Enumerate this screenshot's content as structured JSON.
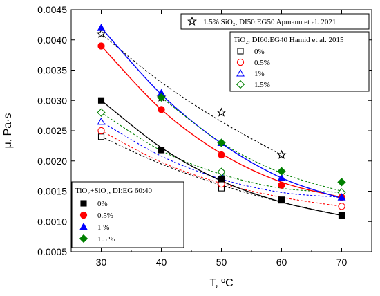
{
  "chart_data": {
    "type": "scatter",
    "xlabel": "T, ºC",
    "ylabel": "μ, Pa·s",
    "xlim": [
      25,
      75
    ],
    "ylim": [
      0.0005,
      0.0045
    ],
    "xticks": [
      "30",
      "40",
      "50",
      "60",
      "70"
    ],
    "yticks": [
      "0.0005",
      "0.0010",
      "0.0015",
      "0.0020",
      "0.0025",
      "0.0030",
      "0.0035",
      "0.0040",
      "0.0045"
    ],
    "grid": false,
    "legends": [
      {
        "title": "1.5% SiO₂, DI50:EG50 Apmann et al. 2021",
        "placement": "top-right",
        "entries": [
          "1.5% SiO₂, DI50:EG50 Apmann et al. 2021"
        ]
      },
      {
        "title": "TiO₂, DI60:EG40 Hamid et al. 2015",
        "placement": "upper-right",
        "entries": [
          "0%",
          "0.5%",
          "1%",
          "1.5%"
        ]
      },
      {
        "title": "TiO₂+SiO₂, DI:EG 60:40",
        "placement": "bottom-left",
        "entries": [
          "0%",
          "0.5%",
          "1 %",
          "1.5 %"
        ]
      }
    ],
    "series": [
      {
        "name": "1.5% SiO₂, DI50:EG50 Apmann et al. 2021",
        "marker": "star",
        "filled": false,
        "color": "#000000",
        "line": "dashed",
        "x": [
          30,
          40,
          50,
          60
        ],
        "values": [
          0.0041,
          0.00305,
          0.0028,
          0.0021
        ]
      },
      {
        "name": "0%",
        "group": "Hamid",
        "marker": "square",
        "filled": false,
        "color": "#000000",
        "line": "dashed",
        "x": [
          30,
          40,
          50,
          60,
          70
        ],
        "values": [
          0.0024,
          0.00218,
          0.00155,
          0.00135,
          0.0011
        ]
      },
      {
        "name": "0.5%",
        "group": "Hamid",
        "marker": "circle",
        "filled": false,
        "color": "#ff0000",
        "line": "dashed",
        "x": [
          30,
          50,
          70
        ],
        "values": [
          0.0025,
          0.00162,
          0.00125
        ]
      },
      {
        "name": "1%",
        "group": "Hamid",
        "marker": "triangle",
        "filled": false,
        "color": "#0000ff",
        "line": "dashed",
        "x": [
          30,
          50
        ],
        "values": [
          0.00265,
          0.00175
        ]
      },
      {
        "name": "1.5%",
        "group": "Hamid",
        "marker": "diamond",
        "filled": false,
        "color": "#008000",
        "line": "dashed",
        "x": [
          30,
          50,
          70
        ],
        "values": [
          0.0028,
          0.00182,
          0.00148
        ]
      },
      {
        "name": "0%",
        "group": "TiO2+SiO2",
        "marker": "square",
        "filled": true,
        "color": "#000000",
        "line": "solid",
        "x": [
          30,
          40,
          50,
          60,
          70
        ],
        "values": [
          0.003,
          0.00218,
          0.0017,
          0.00136,
          0.0011
        ]
      },
      {
        "name": "0.5%",
        "group": "TiO2+SiO2",
        "marker": "circle",
        "filled": true,
        "color": "#ff0000",
        "line": "solid",
        "x": [
          30,
          40,
          50,
          60,
          70
        ],
        "values": [
          0.0039,
          0.00285,
          0.0021,
          0.0016,
          0.0014
        ]
      },
      {
        "name": "1 %",
        "group": "TiO2+SiO2",
        "marker": "triangle",
        "filled": true,
        "color": "#0000ff",
        "line": "solid",
        "x": [
          30,
          40,
          50,
          60,
          70
        ],
        "values": [
          0.0042,
          0.00312,
          0.0023,
          0.00172,
          0.0014
        ]
      },
      {
        "name": "1.5 %",
        "group": "TiO2+SiO2",
        "marker": "diamond",
        "filled": true,
        "color": "#008000",
        "line": "solid",
        "x": [
          40,
          50,
          60,
          70
        ],
        "values": [
          0.00305,
          0.0023,
          0.00183,
          0.00165
        ]
      }
    ],
    "fit_curves": [
      {
        "color": "#000000",
        "style": "dashed",
        "x": [
          30,
          40,
          50,
          60
        ],
        "values": [
          0.0041,
          0.0033,
          0.00265,
          0.0021
        ]
      },
      {
        "color": "#000000",
        "style": "dashed",
        "x": [
          30,
          40,
          50,
          60,
          70
        ],
        "values": [
          0.0024,
          0.00195,
          0.0016,
          0.00132,
          0.0011
        ]
      },
      {
        "color": "#ff0000",
        "style": "dashed",
        "x": [
          30,
          40,
          50,
          60,
          70
        ],
        "values": [
          0.0025,
          0.00198,
          0.00163,
          0.0014,
          0.00125
        ]
      },
      {
        "color": "#0000ff",
        "style": "dashed",
        "x": [
          30,
          40,
          50,
          60,
          70
        ],
        "values": [
          0.00265,
          0.00208,
          0.0017,
          0.00148,
          0.0014
        ]
      },
      {
        "color": "#008000",
        "style": "dashed",
        "x": [
          30,
          40,
          50,
          60,
          70
        ],
        "values": [
          0.0028,
          0.00217,
          0.00178,
          0.00155,
          0.00148
        ]
      },
      {
        "color": "#000000",
        "style": "solid",
        "x": [
          30,
          40,
          50,
          60,
          70
        ],
        "values": [
          0.003,
          0.00222,
          0.00167,
          0.00132,
          0.0011
        ]
      },
      {
        "color": "#ff0000",
        "style": "solid",
        "x": [
          30,
          40,
          50,
          60,
          70
        ],
        "values": [
          0.0039,
          0.00285,
          0.00212,
          0.00165,
          0.0014
        ]
      },
      {
        "color": "#0000ff",
        "style": "solid",
        "x": [
          30,
          40,
          50,
          60,
          70
        ],
        "values": [
          0.0042,
          0.0031,
          0.00229,
          0.00172,
          0.00138
        ]
      },
      {
        "color": "#008000",
        "style": "dashed",
        "x": [
          40,
          50,
          60,
          70
        ],
        "values": [
          0.00305,
          0.0023,
          0.0018,
          0.0015
        ]
      }
    ]
  }
}
